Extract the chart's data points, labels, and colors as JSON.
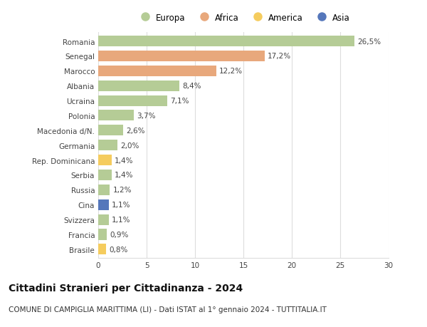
{
  "countries": [
    "Romania",
    "Senegal",
    "Marocco",
    "Albania",
    "Ucraina",
    "Polonia",
    "Macedonia d/N.",
    "Germania",
    "Rep. Dominicana",
    "Serbia",
    "Russia",
    "Cina",
    "Svizzera",
    "Francia",
    "Brasile"
  ],
  "values": [
    26.5,
    17.2,
    12.2,
    8.4,
    7.1,
    3.7,
    2.6,
    2.0,
    1.4,
    1.4,
    1.2,
    1.1,
    1.1,
    0.9,
    0.8
  ],
  "labels": [
    "26,5%",
    "17,2%",
    "12,2%",
    "8,4%",
    "7,1%",
    "3,7%",
    "2,6%",
    "2,0%",
    "1,4%",
    "1,4%",
    "1,2%",
    "1,1%",
    "1,1%",
    "0,9%",
    "0,8%"
  ],
  "continents": [
    "Europa",
    "Africa",
    "Africa",
    "Europa",
    "Europa",
    "Europa",
    "Europa",
    "Europa",
    "America",
    "Europa",
    "Europa",
    "Asia",
    "Europa",
    "Europa",
    "America"
  ],
  "colors": {
    "Europa": "#b5cc96",
    "Africa": "#e8a87c",
    "America": "#f5cc5e",
    "Asia": "#5577bb"
  },
  "legend_order": [
    "Europa",
    "Africa",
    "America",
    "Asia"
  ],
  "title": "Cittadini Stranieri per Cittadinanza - 2024",
  "subtitle": "COMUNE DI CAMPIGLIA MARITTIMA (LI) - Dati ISTAT al 1° gennaio 2024 - TUTTITALIA.IT",
  "xlim": [
    0,
    30
  ],
  "xticks": [
    0,
    5,
    10,
    15,
    20,
    25,
    30
  ],
  "background_color": "#ffffff",
  "grid_color": "#dddddd",
  "title_fontsize": 10,
  "subtitle_fontsize": 7.5,
  "label_fontsize": 7.5,
  "tick_fontsize": 7.5,
  "legend_fontsize": 8.5,
  "bar_height": 0.72
}
